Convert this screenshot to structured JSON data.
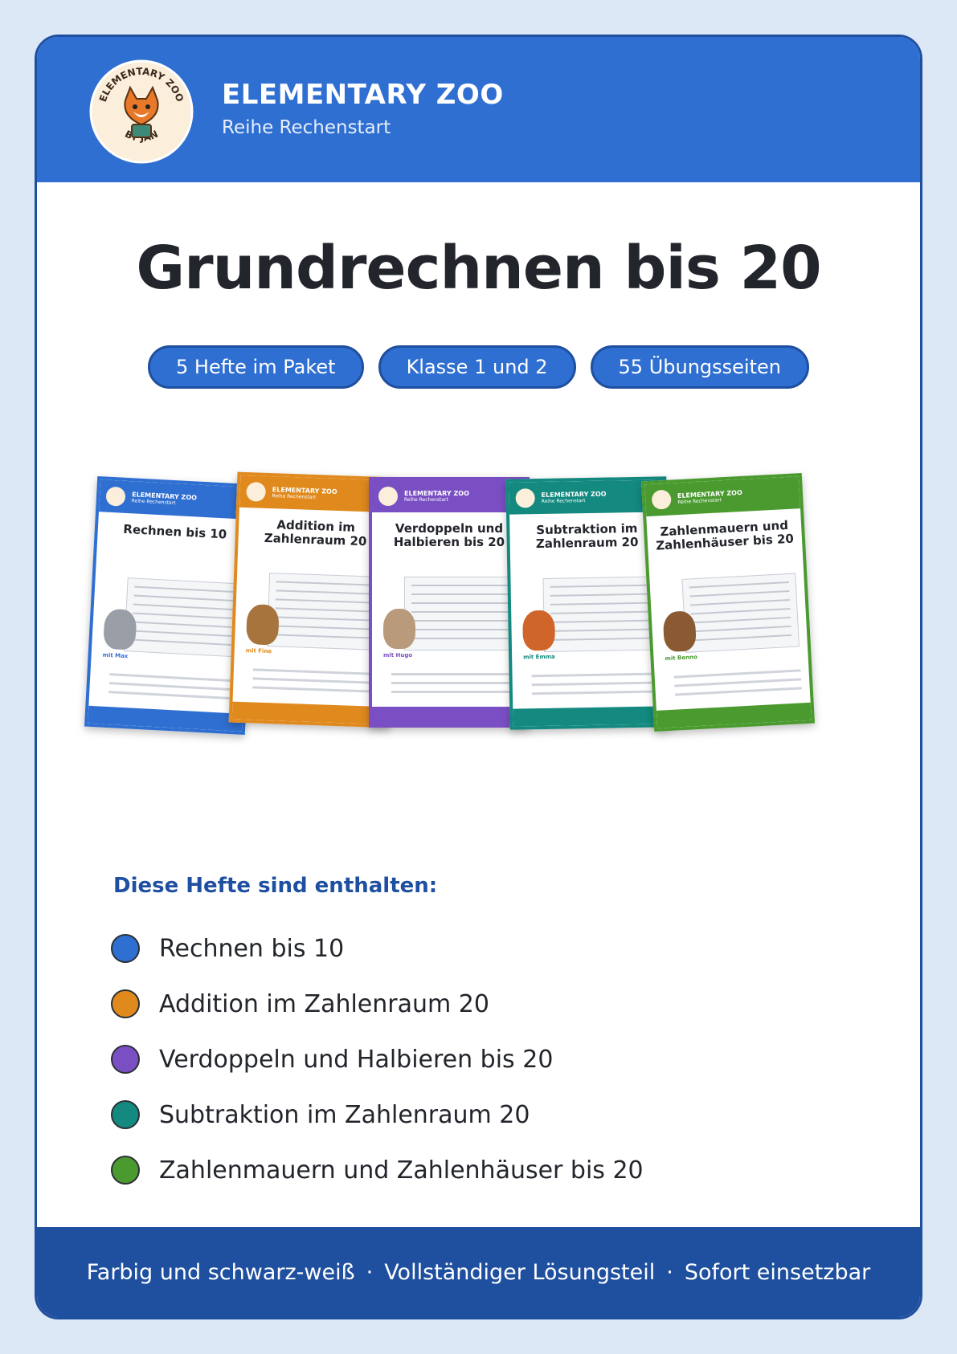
{
  "header": {
    "brand": "ELEMENTARY ZOO",
    "series": "Reihe Rechenstart",
    "logo": {
      "top": "ELEMENTARY ZOO",
      "bottom": "BY JAN"
    }
  },
  "title": "Grundrechnen bis 20",
  "badges": [
    "5 Hefte im Paket",
    "Klasse 1 und 2",
    "55 Übungsseiten"
  ],
  "list": {
    "heading": "Diese Hefte sind enthalten:",
    "items": [
      {
        "label": "Rechnen bis 10",
        "color": "#2f6fd1",
        "mascot": "mit Max"
      },
      {
        "label": "Addition im Zahlenraum 20",
        "color": "#e08a1e",
        "mascot": "mit Fine"
      },
      {
        "label": "Verdoppeln und Halbieren bis 20",
        "color": "#7b4fc4",
        "mascot": "mit Hugo"
      },
      {
        "label": "Subtraktion im Zahlenraum 20",
        "color": "#13897f",
        "mascot": "mit Emma"
      },
      {
        "label": "Zahlenmauern und Zahlenhäuser bis 20",
        "color": "#4a9a2f",
        "mascot": "mit Benno"
      }
    ]
  },
  "footer": [
    "Farbig und schwarz-weiß",
    "Vollständiger Lösungsteil",
    "Sofort einsetzbar"
  ]
}
